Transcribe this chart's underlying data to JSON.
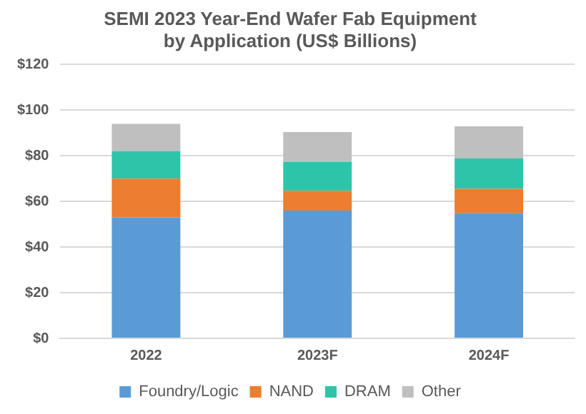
{
  "chart_data": {
    "type": "bar",
    "title": [
      "SEMI 2023 Year-End Wafer Fab Equipment",
      "by Application (US$ Billions)"
    ],
    "categories": [
      "2022",
      "2023F",
      "2024F"
    ],
    "stacked": true,
    "series": [
      {
        "name": "Foundry/Logic",
        "color": "#5b9bd5",
        "values": [
          53,
          56,
          55
        ]
      },
      {
        "name": "NAND",
        "color": "#ed7d31",
        "values": [
          17,
          8.7,
          10.5
        ]
      },
      {
        "name": "DRAM",
        "color": "#2ec4a9",
        "values": [
          12,
          12.6,
          13.4
        ]
      },
      {
        "name": "Other",
        "color": "#bfbfbf",
        "values": [
          12,
          13.1,
          14
        ]
      }
    ],
    "ylim": [
      0,
      120
    ],
    "yticks": [
      {
        "value": 0,
        "label": "$0"
      },
      {
        "value": 20,
        "label": "$20"
      },
      {
        "value": 40,
        "label": "$40"
      },
      {
        "value": 60,
        "label": "$60"
      },
      {
        "value": 80,
        "label": "$80"
      },
      {
        "value": 100,
        "label": "$100"
      },
      {
        "value": 120,
        "label": "$120"
      }
    ],
    "grid": "y",
    "legend": "bottom"
  }
}
